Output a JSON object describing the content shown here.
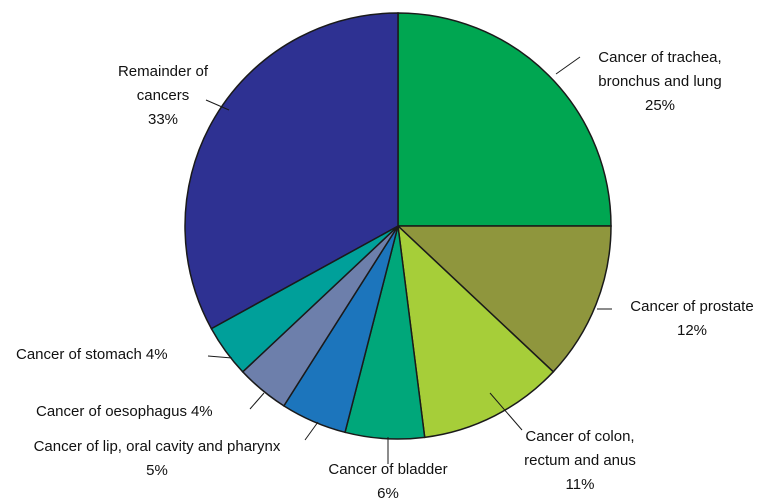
{
  "chart_data": {
    "type": "pie",
    "categories": [
      "Cancer of trachea, bronchus and lung",
      "Cancer of prostate",
      "Cancer of colon, rectum and anus",
      "Cancer of bladder",
      "Cancer of lip, oral cavity and pharynx",
      "Cancer of oesophagus",
      "Cancer of stomach",
      "Remainder of cancers"
    ],
    "values": [
      25,
      12,
      11,
      6,
      5,
      4,
      4,
      33
    ],
    "value_labels": [
      "25%",
      "12%",
      "11%",
      "6%",
      "5%",
      "4%",
      "4%",
      "33%"
    ],
    "colors": [
      "#00a651",
      "#8f963d",
      "#a6ce39",
      "#00a77a",
      "#1c75bc",
      "#6d7fab",
      "#00a09a",
      "#2e3192"
    ]
  }
}
